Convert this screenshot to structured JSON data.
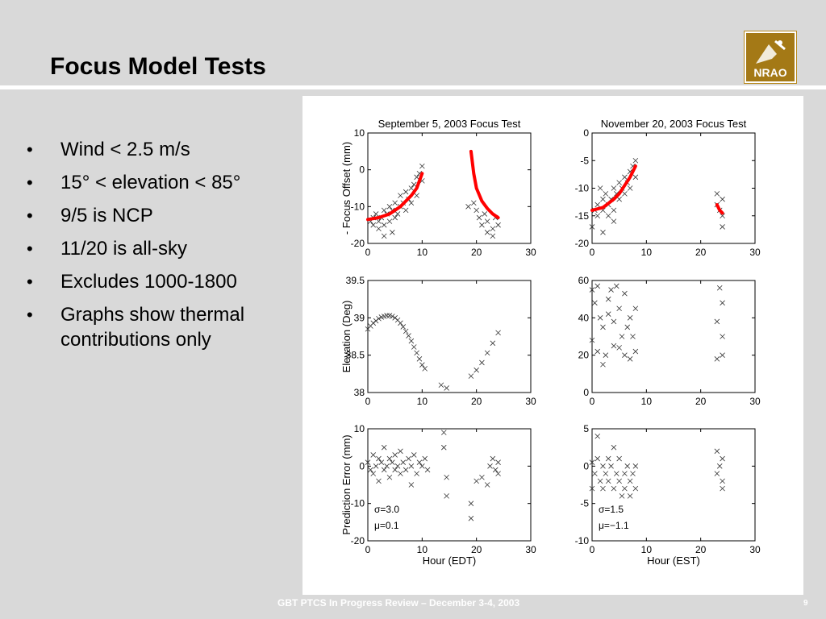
{
  "slide": {
    "title": "Focus Model Tests",
    "bullets": [
      "Wind < 2.5 m/s",
      "15° < elevation < 85°",
      "9/5 is NCP",
      "11/20 is all-sky",
      "Excludes 1000-1800",
      "Graphs show thermal contributions only"
    ],
    "footer": "GBT PTCS In Progress  Review – December 3-4, 2003",
    "page_number": "9",
    "logo_text": "NRAO",
    "colors": {
      "background": "#d9d9d9",
      "logo_gold": "#a47916",
      "fit_line": "#ff0000"
    }
  },
  "chart_data": [
    {
      "type": "scatter",
      "title": "September 5, 2003 Focus Test",
      "xlabel": "",
      "ylabel": "- Focus Offset (mm)",
      "xlim": [
        0,
        30
      ],
      "ylim": [
        -20,
        10
      ],
      "xticks": [
        0,
        10,
        20,
        30
      ],
      "yticks": [
        10,
        0,
        -10,
        -20
      ],
      "series": [
        {
          "kind": "scatter",
          "points": [
            [
              0.5,
              -14
            ],
            [
              1,
              -13
            ],
            [
              1,
              -15
            ],
            [
              1.5,
              -12
            ],
            [
              2,
              -14
            ],
            [
              2,
              -16
            ],
            [
              2.5,
              -13
            ],
            [
              3,
              -11
            ],
            [
              3,
              -15
            ],
            [
              3.5,
              -12
            ],
            [
              4,
              -10
            ],
            [
              4,
              -14
            ],
            [
              4.5,
              -11
            ],
            [
              5,
              -13
            ],
            [
              5,
              -9
            ],
            [
              5.5,
              -12
            ],
            [
              6,
              -10
            ],
            [
              6,
              -7
            ],
            [
              6.5,
              -9
            ],
            [
              7,
              -6
            ],
            [
              7,
              -11
            ],
            [
              7.5,
              -8
            ],
            [
              8,
              -5
            ],
            [
              8,
              -9
            ],
            [
              8.5,
              -4
            ],
            [
              9,
              -2
            ],
            [
              9,
              -7
            ],
            [
              9.5,
              -1
            ],
            [
              10,
              1
            ],
            [
              10,
              -3
            ],
            [
              3,
              -18
            ],
            [
              4.5,
              -17
            ],
            [
              18.5,
              -10
            ],
            [
              19.5,
              -9
            ],
            [
              20,
              -11
            ],
            [
              20.5,
              -13
            ],
            [
              21,
              -15
            ],
            [
              21.5,
              -12
            ],
            [
              22,
              -17
            ],
            [
              22,
              -14
            ],
            [
              23,
              -16
            ],
            [
              23,
              -18
            ],
            [
              23.5,
              -13
            ],
            [
              24,
              -15
            ]
          ]
        },
        {
          "kind": "line",
          "segments": [
            [
              [
                0,
                -13.5
              ],
              [
                2,
                -13
              ],
              [
                4,
                -12
              ],
              [
                6,
                -10
              ],
              [
                8,
                -7
              ],
              [
                9,
                -5
              ],
              [
                10,
                -1
              ]
            ],
            [
              [
                19,
                5
              ],
              [
                19.5,
                -1
              ],
              [
                20,
                -5
              ],
              [
                21,
                -8.5
              ],
              [
                22,
                -10.5
              ],
              [
                23,
                -12
              ],
              [
                24,
                -13
              ]
            ]
          ]
        }
      ]
    },
    {
      "type": "scatter",
      "title": "November 20, 2003 Focus Test",
      "xlabel": "",
      "ylabel": "",
      "xlim": [
        0,
        30
      ],
      "ylim": [
        -20,
        0
      ],
      "xticks": [
        0,
        10,
        20,
        30
      ],
      "yticks": [
        0,
        -5,
        -10,
        -15,
        -20
      ],
      "series": [
        {
          "kind": "scatter",
          "points": [
            [
              0,
              -17
            ],
            [
              0.5,
              -14
            ],
            [
              1,
              -13
            ],
            [
              1,
              -15
            ],
            [
              1.5,
              -10
            ],
            [
              2,
              -12
            ],
            [
              2,
              -14
            ],
            [
              2.5,
              -11
            ],
            [
              3,
              -13
            ],
            [
              3,
              -15
            ],
            [
              3.5,
              -12
            ],
            [
              4,
              -14
            ],
            [
              4,
              -10
            ],
            [
              4.5,
              -11
            ],
            [
              5,
              -12
            ],
            [
              5,
              -9
            ],
            [
              5.5,
              -10
            ],
            [
              6,
              -8
            ],
            [
              6,
              -11
            ],
            [
              6.5,
              -9
            ],
            [
              7,
              -7
            ],
            [
              7,
              -10
            ],
            [
              7.5,
              -6
            ],
            [
              8,
              -5
            ],
            [
              8,
              -8
            ],
            [
              2,
              -18
            ],
            [
              4,
              -16
            ],
            [
              23,
              -11
            ],
            [
              23,
              -13
            ],
            [
              23.5,
              -14
            ],
            [
              24,
              -12
            ],
            [
              24,
              -15
            ],
            [
              24,
              -17
            ]
          ]
        },
        {
          "kind": "line",
          "segments": [
            [
              [
                0,
                -14
              ],
              [
                2,
                -13.5
              ],
              [
                4,
                -12
              ],
              [
                5,
                -11
              ],
              [
                6,
                -9.5
              ],
              [
                7,
                -8
              ],
              [
                8,
                -6
              ]
            ],
            [
              [
                23,
                -13
              ],
              [
                23.5,
                -14
              ],
              [
                24,
                -14.5
              ]
            ]
          ]
        }
      ]
    },
    {
      "type": "scatter",
      "title": "",
      "xlabel": "",
      "ylabel": "Elevation (Deg)",
      "xlim": [
        0,
        30
      ],
      "ylim": [
        38,
        39.5
      ],
      "xticks": [
        0,
        10,
        20,
        30
      ],
      "yticks": [
        39.5,
        39,
        38.5,
        38
      ],
      "series": [
        {
          "kind": "scatter",
          "points": [
            [
              0,
              38.85
            ],
            [
              0.5,
              38.89
            ],
            [
              1,
              38.93
            ],
            [
              1.5,
              38.96
            ],
            [
              2,
              38.99
            ],
            [
              2.5,
              39.01
            ],
            [
              3,
              39.02
            ],
            [
              3.5,
              39.03
            ],
            [
              4,
              39.03
            ],
            [
              4.5,
              39.02
            ],
            [
              5,
              39.0
            ],
            [
              5.5,
              38.97
            ],
            [
              6,
              38.93
            ],
            [
              6.5,
              38.88
            ],
            [
              7,
              38.82
            ],
            [
              7.5,
              38.76
            ],
            [
              8,
              38.69
            ],
            [
              8.5,
              38.61
            ],
            [
              9,
              38.53
            ],
            [
              9.5,
              38.45
            ],
            [
              10,
              38.37
            ],
            [
              10.5,
              38.32
            ],
            [
              13.5,
              38.1
            ],
            [
              14.5,
              38.06
            ],
            [
              19,
              38.22
            ],
            [
              20,
              38.3
            ],
            [
              21,
              38.4
            ],
            [
              22,
              38.53
            ],
            [
              23,
              38.66
            ],
            [
              24,
              38.8
            ]
          ]
        }
      ]
    },
    {
      "type": "scatter",
      "title": "",
      "xlabel": "",
      "ylabel": "",
      "xlim": [
        0,
        30
      ],
      "ylim": [
        0,
        60
      ],
      "xticks": [
        0,
        10,
        20,
        30
      ],
      "yticks": [
        60,
        40,
        20,
        0
      ],
      "series": [
        {
          "kind": "scatter",
          "points": [
            [
              0,
              55
            ],
            [
              0,
              28
            ],
            [
              0.5,
              48
            ],
            [
              1,
              57
            ],
            [
              1,
              22
            ],
            [
              1.5,
              40
            ],
            [
              2,
              35
            ],
            [
              2,
              15
            ],
            [
              2.5,
              20
            ],
            [
              3,
              50
            ],
            [
              3,
              42
            ],
            [
              3.5,
              55
            ],
            [
              4,
              25
            ],
            [
              4,
              38
            ],
            [
              4.5,
              57
            ],
            [
              5,
              45
            ],
            [
              5,
              24
            ],
            [
              5.5,
              30
            ],
            [
              6,
              53
            ],
            [
              6,
              20
            ],
            [
              6.5,
              35
            ],
            [
              7,
              40
            ],
            [
              7,
              18
            ],
            [
              7.5,
              30
            ],
            [
              8,
              22
            ],
            [
              8,
              45
            ],
            [
              23,
              18
            ],
            [
              23,
              38
            ],
            [
              23.5,
              56
            ],
            [
              24,
              30
            ],
            [
              24,
              20
            ],
            [
              24,
              48
            ]
          ]
        }
      ]
    },
    {
      "type": "scatter",
      "title": "",
      "xlabel": "Hour (EDT)",
      "ylabel": "Prediction Error (mm)",
      "xlim": [
        0,
        30
      ],
      "ylim": [
        -20,
        10
      ],
      "xticks": [
        0,
        10,
        20,
        30
      ],
      "yticks": [
        10,
        0,
        -10,
        -20
      ],
      "annotations": [
        "σ=3.0",
        "μ=0.1"
      ],
      "series": [
        {
          "kind": "scatter",
          "points": [
            [
              0,
              1
            ],
            [
              0.5,
              -1
            ],
            [
              1,
              3
            ],
            [
              1,
              -2
            ],
            [
              1.5,
              0
            ],
            [
              2,
              2
            ],
            [
              2,
              -4
            ],
            [
              2.5,
              1
            ],
            [
              3,
              -1
            ],
            [
              3,
              5
            ],
            [
              3.5,
              0
            ],
            [
              4,
              2
            ],
            [
              4,
              -3
            ],
            [
              4.5,
              1
            ],
            [
              5,
              -1
            ],
            [
              5,
              3
            ],
            [
              5.5,
              0
            ],
            [
              6,
              4
            ],
            [
              6,
              -2
            ],
            [
              6.5,
              1
            ],
            [
              7,
              -1
            ],
            [
              7.5,
              2
            ],
            [
              8,
              0
            ],
            [
              8,
              -5
            ],
            [
              8.5,
              3
            ],
            [
              9,
              -2
            ],
            [
              9.5,
              1
            ],
            [
              10,
              0
            ],
            [
              10.5,
              2
            ],
            [
              11,
              -1
            ],
            [
              14,
              9
            ],
            [
              14,
              5
            ],
            [
              14.5,
              -3
            ],
            [
              14.5,
              -8
            ],
            [
              19,
              -10
            ],
            [
              19,
              -14
            ],
            [
              20,
              -4
            ],
            [
              21,
              -3
            ],
            [
              22,
              -5
            ],
            [
              22.5,
              0
            ],
            [
              23,
              2
            ],
            [
              23.5,
              -1
            ],
            [
              24,
              1
            ],
            [
              24,
              -2
            ]
          ]
        }
      ]
    },
    {
      "type": "scatter",
      "title": "",
      "xlabel": "Hour (EST)",
      "ylabel": "",
      "xlim": [
        0,
        30
      ],
      "ylim": [
        -10,
        5
      ],
      "xticks": [
        0,
        10,
        20,
        30
      ],
      "yticks": [
        5,
        0,
        -5,
        -10
      ],
      "annotations": [
        "σ=1.5",
        "μ=−1.1"
      ],
      "series": [
        {
          "kind": "scatter",
          "points": [
            [
              0,
              0.5
            ],
            [
              0,
              -3
            ],
            [
              0.5,
              -1
            ],
            [
              1,
              4
            ],
            [
              1,
              1
            ],
            [
              1.5,
              -2
            ],
            [
              2,
              0
            ],
            [
              2,
              -3
            ],
            [
              2.5,
              -1
            ],
            [
              3,
              1
            ],
            [
              3,
              -2
            ],
            [
              3.5,
              0
            ],
            [
              4,
              -3
            ],
            [
              4,
              2.5
            ],
            [
              4.5,
              -1
            ],
            [
              5,
              -2
            ],
            [
              5,
              1
            ],
            [
              5.5,
              -4
            ],
            [
              6,
              -1
            ],
            [
              6,
              -3
            ],
            [
              6.5,
              0
            ],
            [
              7,
              -2
            ],
            [
              7,
              -4
            ],
            [
              7.5,
              -1
            ],
            [
              8,
              0
            ],
            [
              8,
              -3
            ],
            [
              23,
              -1
            ],
            [
              23,
              2
            ],
            [
              23.5,
              0
            ],
            [
              24,
              -2
            ],
            [
              24,
              1
            ],
            [
              24,
              -3
            ]
          ]
        }
      ]
    }
  ]
}
